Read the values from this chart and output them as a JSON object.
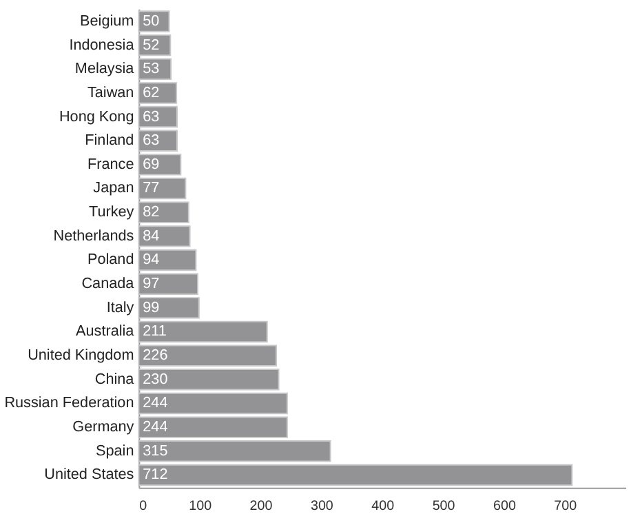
{
  "chart_data": {
    "type": "bar",
    "orientation": "horizontal",
    "categories": [
      "Beigium",
      "Indonesia",
      "Melaysia",
      "Taiwan",
      "Hong Kong",
      "Finland",
      "France",
      "Japan",
      "Turkey",
      "Netherlands",
      "Poland",
      "Canada",
      "Italy",
      "Australia",
      "United Kingdom",
      "China",
      "Russian Federation",
      "Germany",
      "Spain",
      "United States"
    ],
    "values": [
      50,
      52,
      53,
      62,
      63,
      63,
      69,
      77,
      82,
      84,
      94,
      97,
      99,
      211,
      226,
      230,
      244,
      244,
      315,
      712
    ],
    "color": "#939395",
    "xlim": [
      0,
      800
    ],
    "xticks": [
      0,
      100,
      200,
      300,
      400,
      500,
      600,
      700
    ],
    "data_labels": true,
    "grid": false
  }
}
